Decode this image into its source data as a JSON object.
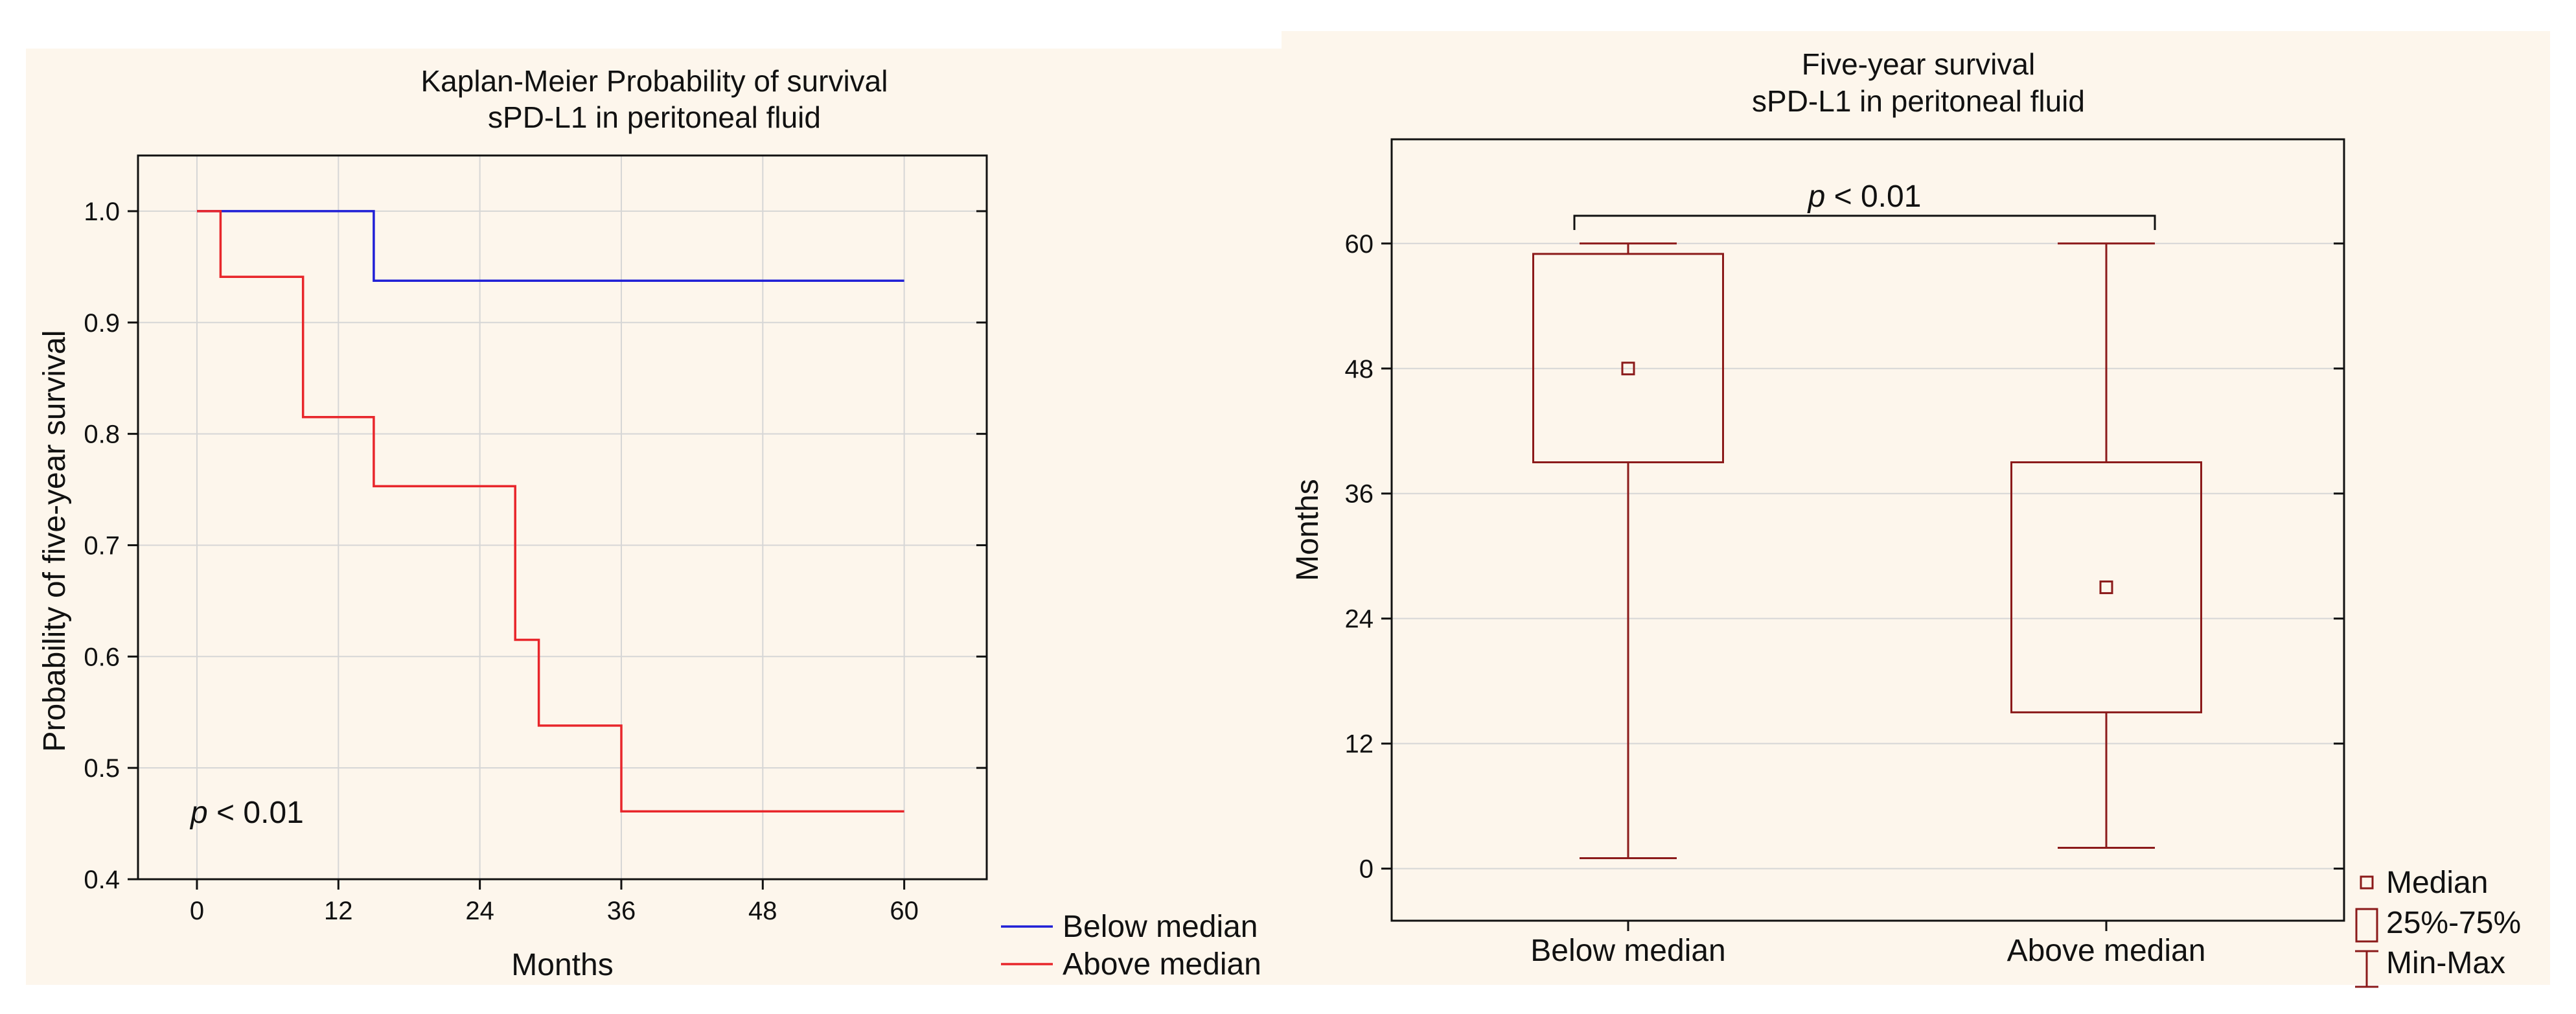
{
  "chart_data": [
    {
      "type": "line",
      "subtype": "kaplan-meier step",
      "title": "Kaplan-Meier Probability of survival",
      "subtitle": "sPD-L1 in peritoneal fluid",
      "xlabel": "Months",
      "ylabel": "Probability of five-year survival",
      "xlim": [
        -5,
        67
      ],
      "ylim": [
        0.4,
        1.05
      ],
      "xticks": [
        0,
        12,
        24,
        36,
        48,
        60
      ],
      "yticks": [
        0.4,
        0.5,
        0.6,
        0.7,
        0.8,
        0.9,
        1.0
      ],
      "xtick_labels": [
        "0",
        "12",
        "24",
        "36",
        "48",
        "60"
      ],
      "ytick_labels": [
        "0.4",
        "0.5",
        "0.6",
        "0.7",
        "0.8",
        "0.9",
        "1.0"
      ],
      "grid": true,
      "annotation": {
        "italic": "p",
        "text": " < 0.01"
      },
      "series": [
        {
          "name": "Below median",
          "color": "#1f1fd6",
          "x": [
            0,
            15,
            15,
            60
          ],
          "y": [
            1.0,
            1.0,
            0.9375,
            0.9375
          ]
        },
        {
          "name": "Above median",
          "color": "#e8262b",
          "x": [
            0,
            2,
            2,
            9,
            9,
            15,
            15,
            27,
            27,
            29,
            29,
            36,
            36,
            60
          ],
          "y": [
            1.0,
            1.0,
            0.941,
            0.941,
            0.815,
            0.815,
            0.753,
            0.753,
            0.615,
            0.615,
            0.538,
            0.538,
            0.461,
            0.461
          ]
        }
      ],
      "legend_position": "right-bottom"
    },
    {
      "type": "box",
      "title": "Five-year survival",
      "subtitle": "sPD-L1 in peritoneal fluid",
      "xlabel": "",
      "ylabel": "Months",
      "ylim": [
        -5,
        70
      ],
      "yticks": [
        0,
        12,
        24,
        36,
        48,
        60
      ],
      "ytick_labels": [
        "0",
        "12",
        "24",
        "36",
        "48",
        "60"
      ],
      "grid": true,
      "color": "#8b1a1a",
      "categories": [
        "Below median",
        "Above median"
      ],
      "boxes": [
        {
          "name": "Below median",
          "min": 1,
          "q1": 39,
          "median": 48,
          "q3": 59,
          "max": 60
        },
        {
          "name": "Above median",
          "min": 2,
          "q1": 15,
          "median": 27,
          "q3": 39,
          "max": 60
        }
      ],
      "significance": {
        "italic": "p",
        "text": " < 0.01"
      },
      "legend": [
        "Median",
        "25%-75%",
        "Min-Max"
      ],
      "legend_position": "right-bottom"
    }
  ]
}
